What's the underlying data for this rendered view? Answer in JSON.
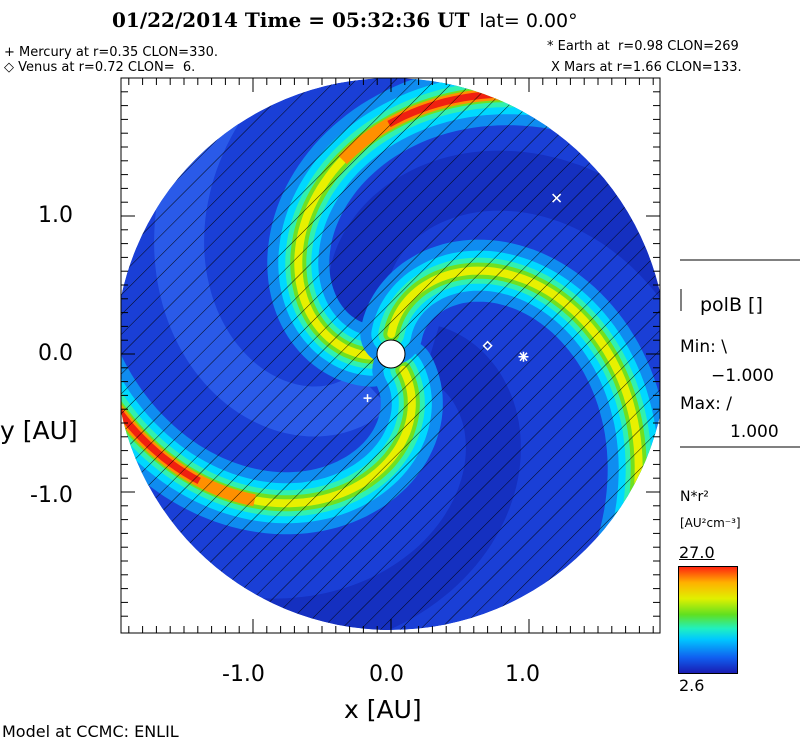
{
  "header": {
    "title": "01/22/2014 Time = 05:32:36 UT",
    "lat": "lat= 0.00°"
  },
  "planets": {
    "mercury": "+ Mercury at r=0.35 CLON=330.",
    "venus": "◇ Venus at r=0.72 CLON=  6.",
    "earth": "* Earth at  r=0.98 CLON=269",
    "mars": "X Mars at r=1.66 CLON=133."
  },
  "legend": {
    "polb": "polB []",
    "min_label": "Min: \\",
    "min_value": "−1.000",
    "max_label": "Max: /",
    "max_value": "1.000",
    "quantity": "N*r²",
    "units": "[AU²cm⁻³]",
    "cb_max": "27.0",
    "cb_min": "2.6"
  },
  "footer": "Model at CCMC: ENLIL",
  "chart_data": {
    "type": "heatmap",
    "title": "01/22/2014 Time = 05:32:36 UT lat= 0.00°",
    "xlabel": "x [AU]",
    "ylabel": "y [AU]",
    "xlim": [
      -1.95,
      1.95
    ],
    "ylim": [
      -2.0,
      2.0
    ],
    "xticks": [
      "-1.0",
      "0.0",
      "1.0"
    ],
    "yticks": [
      "1.0",
      "0.0",
      "-1.0"
    ],
    "colorbar": {
      "min": 2.6,
      "max": 27.0,
      "colors": [
        "#1a1ab0",
        "#1060f0",
        "#00c8ff",
        "#20f0c0",
        "#60e020",
        "#e0f000",
        "#ffb000",
        "#ff2010"
      ]
    },
    "planets": [
      {
        "name": "Mercury",
        "x": -0.17,
        "y": -0.32,
        "marker": "+"
      },
      {
        "name": "Venus",
        "x": 0.7,
        "y": 0.06,
        "marker": "diamond"
      },
      {
        "name": "Earth",
        "x": 0.96,
        "y": -0.02,
        "marker": "*"
      },
      {
        "name": "Mars",
        "x": 1.2,
        "y": 1.13,
        "marker": "x"
      }
    ]
  }
}
